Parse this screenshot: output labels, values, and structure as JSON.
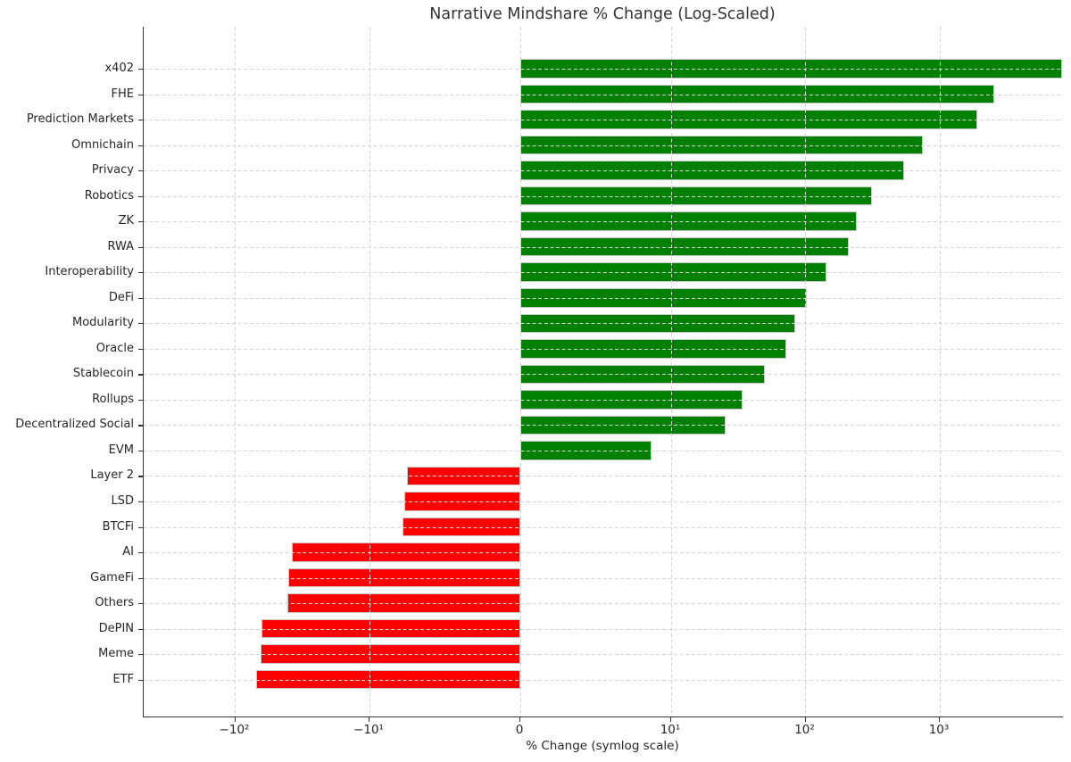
{
  "title": "Narrative Mindshare % Change (Log-Scaled)",
  "xlabel": "% Change (symlog scale)",
  "colors": {
    "positive_bar": "#008000",
    "negative_bar": "#ff0000",
    "grid": "#d4d4d4",
    "spine": "#333333",
    "text": "#262626",
    "bar_edge": "#c9c9c9"
  },
  "chart_data": {
    "type": "bar",
    "orientation": "horizontal",
    "title": "Narrative Mindshare % Change (Log-Scaled)",
    "xlabel": "% Change (symlog scale)",
    "ylabel": "",
    "x_scale": "symlog",
    "grid": true,
    "legend": false,
    "x_ticks": [
      {
        "value": -100,
        "label": "−10²"
      },
      {
        "value": -10,
        "label": "−10¹"
      },
      {
        "value": 0,
        "label": "0"
      },
      {
        "value": 10,
        "label": "10¹"
      },
      {
        "value": 100,
        "label": "10²"
      },
      {
        "value": 1000,
        "label": "10³"
      }
    ],
    "xlim": [
      -480,
      8400
    ],
    "categories": [
      "x402",
      "FHE",
      "Prediction Markets",
      "Omnichain",
      "Privacy",
      "Robotics",
      "ZK",
      "RWA",
      "Interoperability",
      "DeFi",
      "Modularity",
      "Oracle",
      "Stablecoin",
      "Rollups",
      "Decentralized Social",
      "EVM",
      "Layer 2",
      "LSD",
      "BTCFi",
      "AI",
      "GameFi",
      "Others",
      "DePIN",
      "Meme",
      "ETF"
    ],
    "values": [
      8100,
      2550,
      1910,
      750,
      545,
      313,
      242,
      211,
      144,
      102,
      84,
      72,
      50,
      34,
      25.5,
      8.7,
      -7.5,
      -7.7,
      -7.8,
      -38,
      -40,
      -41,
      -64,
      -64.5,
      -70
    ]
  }
}
